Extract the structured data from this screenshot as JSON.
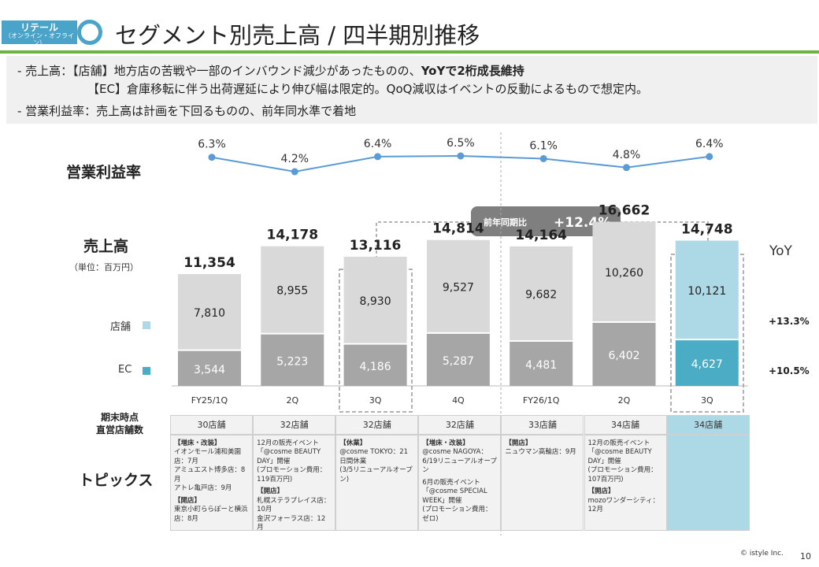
{
  "header": {
    "segment_line1": "リテール",
    "segment_line2": "（オンライン・オフライン）",
    "title": "セグメント別売上高 / 四半期別推移"
  },
  "summary": {
    "line1_prefix": "-  売上高：【店舗】地方店の苦戦や一部のインバウンド減少があったものの、",
    "line1_bold": "YoYで2桁成長維持",
    "line2": "【EC】倉庫移転に伴う出荷遅延により伸び幅は限定的。QoQ減収はイベントの反動によるもので想定内。",
    "line3": "-  営業利益率：売上高は計画を下回るものの、前年同水準で着地"
  },
  "labels": {
    "op_margin": "営業利益率",
    "sales": "売上高",
    "unit": "（単位：百万円）",
    "store_legend": "店舗",
    "ec_legend": "EC",
    "yoy": "YoY",
    "yoy_callout_label": "前年同期比",
    "yoy_callout_value": "+12.4%",
    "stores_header": "期末時点\n直営店舗数",
    "topics_header": "トピックス",
    "footer_copyright": "© istyle Inc.",
    "page_number": "10"
  },
  "colors": {
    "accent_blue": "#4aa3c8",
    "green_rule": "#6db33f",
    "store_gray": "#d9d9d9",
    "ec_gray": "#a6a6a6",
    "store_highlight": "#add8e6",
    "ec_highlight": "#4bacc6",
    "line": "#5b9bd5"
  },
  "chart_data": {
    "type": "bar",
    "stacked": true,
    "categories": [
      "FY25/1Q",
      "2Q",
      "3Q",
      "4Q",
      "FY26/1Q",
      "2Q",
      "3Q"
    ],
    "series": [
      {
        "name": "EC",
        "values": [
          3544,
          5223,
          4186,
          5287,
          4481,
          6402,
          4627
        ]
      },
      {
        "name": "店舗",
        "values": [
          7810,
          8955,
          8930,
          9527,
          9682,
          10260,
          10121
        ]
      }
    ],
    "totals": [
      11354,
      14178,
      13116,
      14814,
      14164,
      16662,
      14748
    ],
    "total_labels": [
      "11,354",
      "14,178",
      "13,116",
      "14,814",
      "14,164",
      "16,662",
      "14,748"
    ],
    "ec_labels": [
      "3,544",
      "5,223",
      "4,186",
      "5,287",
      "4,481",
      "6,402",
      "4,627"
    ],
    "store_labels": [
      "7,810",
      "8,955",
      "8,930",
      "9,527",
      "9,682",
      "10,260",
      "10,121"
    ],
    "ylim": [
      0,
      18000
    ],
    "op_margin": {
      "type": "line",
      "values": [
        6.3,
        4.2,
        6.4,
        6.5,
        6.1,
        4.8,
        6.4
      ],
      "labels": [
        "6.3%",
        "4.2%",
        "6.4%",
        "6.5%",
        "6.1%",
        "4.8%",
        "6.4%"
      ]
    },
    "yoy": {
      "store": "+13.3%",
      "ec": "+10.5%"
    }
  },
  "stores": [
    "30店舗",
    "32店舗",
    "32店舗",
    "32店舗",
    "33店舗",
    "34店舗",
    "34店舗"
  ],
  "topics": [
    [
      {
        "t": "【増床・改装】",
        "b": "イオンモール浦和美園店：7月\nアミュエスト博多店：8月\nアトレ亀戸店：9月"
      },
      {
        "t": "【開店】",
        "b": "東京小町ららぽーと横浜店：8月"
      }
    ],
    [
      {
        "t": "",
        "b": "12月の販売イベント\n「@cosme BEAUTY DAY」開催\n(プロモーション費用：119百万円)"
      },
      {
        "t": "【開店】",
        "b": "札幌ステラプレイス店：10月\n金沢フォーラス店：12月"
      }
    ],
    [
      {
        "t": "【休業】",
        "b": "@cosme TOKYO：21日間休業\n(3/5リニューアルオープン)"
      }
    ],
    [
      {
        "t": "【増床・改装】",
        "b": "@cosme NAGOYA：6/19リニューアルオープン"
      },
      {
        "t": "",
        "b": "6月の販売イベント\n「@cosme SPECIAL WEEK」開催\n(プロモーション費用：ゼロ)"
      }
    ],
    [
      {
        "t": "【開店】",
        "b": "ニュウマン高輪店：9月"
      }
    ],
    [
      {
        "t": "",
        "b": "12月の販売イベント\n「@cosme BEAUTY DAY」開催\n(プロモーション費用：107百万円)"
      },
      {
        "t": "【開店】",
        "b": "mozoワンダーシティ：12月"
      }
    ],
    []
  ]
}
